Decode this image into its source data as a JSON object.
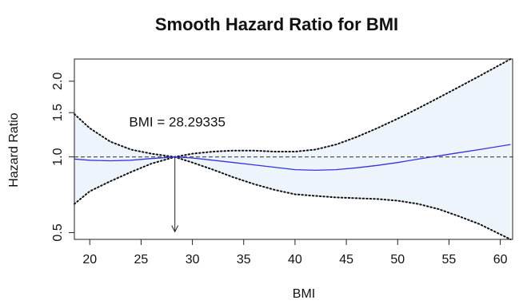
{
  "chart_data": {
    "type": "line",
    "title": "Smooth Hazard Ratio for BMI",
    "xlabel": "BMI",
    "ylabel": "Hazard Ratio",
    "xlim": [
      18.5,
      61.2
    ],
    "ylim": [
      0.47,
      2.45
    ],
    "yscale": "log",
    "x_ticks": [
      20,
      25,
      30,
      35,
      40,
      45,
      50,
      55,
      60
    ],
    "y_ticks": [
      0.5,
      1.0,
      1.5,
      2.0
    ],
    "y_tick_labels": [
      "0.5",
      "1.0",
      "1.5",
      "2.0"
    ],
    "reference_line": {
      "y": 1.0,
      "style": "dashed",
      "color": "#555555"
    },
    "annotation": {
      "text": "BMI = 28.29335",
      "x": 28.29335,
      "arrow_to_y": 0.5
    },
    "band_fill": "#eef4fc",
    "series": [
      {
        "role": "estimate",
        "color": "#3333dd",
        "style": "solid",
        "x": [
          18.5,
          20,
          22,
          24,
          26,
          28.29,
          30,
          32,
          34,
          36,
          38,
          40,
          42,
          44,
          46,
          48,
          50,
          52,
          54,
          56,
          58,
          61
        ],
        "y": [
          0.98,
          0.97,
          0.965,
          0.97,
          0.985,
          1.0,
          0.99,
          0.97,
          0.95,
          0.93,
          0.91,
          0.89,
          0.885,
          0.89,
          0.905,
          0.925,
          0.95,
          0.98,
          1.01,
          1.04,
          1.07,
          1.12
        ]
      },
      {
        "role": "upper",
        "color": "#111111",
        "style": "dotted",
        "x": [
          18.5,
          20,
          22,
          24,
          26,
          28.29,
          30,
          32,
          34,
          36,
          38,
          40,
          42,
          44,
          46,
          48,
          50,
          52,
          54,
          56,
          58,
          61
        ],
        "y": [
          1.48,
          1.3,
          1.15,
          1.07,
          1.03,
          1.0,
          1.03,
          1.05,
          1.06,
          1.06,
          1.05,
          1.05,
          1.07,
          1.12,
          1.2,
          1.3,
          1.42,
          1.56,
          1.72,
          1.9,
          2.1,
          2.45
        ]
      },
      {
        "role": "lower",
        "color": "#111111",
        "style": "dotted",
        "x": [
          18.5,
          20,
          22,
          24,
          26,
          28.29,
          30,
          32,
          34,
          36,
          38,
          40,
          42,
          44,
          46,
          48,
          50,
          52,
          54,
          56,
          58,
          61
        ],
        "y": [
          0.65,
          0.73,
          0.8,
          0.87,
          0.94,
          1.0,
          0.95,
          0.89,
          0.83,
          0.78,
          0.74,
          0.71,
          0.7,
          0.69,
          0.685,
          0.68,
          0.67,
          0.65,
          0.62,
          0.58,
          0.54,
          0.47
        ]
      }
    ]
  }
}
